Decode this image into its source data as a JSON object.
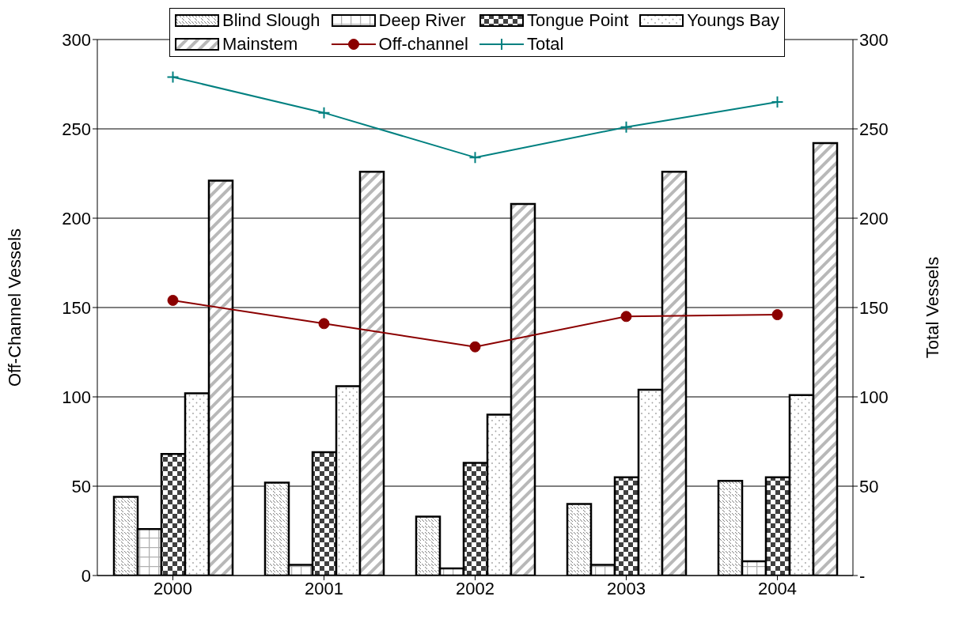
{
  "chart_data": {
    "type": "bar",
    "categories": [
      "2000",
      "2001",
      "2002",
      "2003",
      "2004"
    ],
    "ylabel": "Off-Channel Vessels",
    "y2label": "Total Vessels",
    "ylim": [
      0,
      300
    ],
    "yticks": [
      0,
      50,
      100,
      150,
      200,
      250,
      300
    ],
    "y2lim": [
      0,
      300
    ],
    "y2ticks": [
      {
        "value": 0,
        "label": "-"
      },
      50,
      100,
      150,
      200,
      250,
      300
    ],
    "grid": "y",
    "legend": "top",
    "series": [
      {
        "name": "Blind Slough",
        "color": "#000000",
        "values": [
          44,
          52,
          33,
          40,
          53
        ]
      },
      {
        "name": "Deep River",
        "color": "#000000",
        "values": [
          26,
          6,
          4,
          6,
          8
        ]
      },
      {
        "name": "Tongue Point",
        "color": "#000000",
        "values": [
          68,
          69,
          63,
          55,
          55
        ]
      },
      {
        "name": "Youngs Bay",
        "color": "#000000",
        "values": [
          102,
          106,
          90,
          104,
          101
        ]
      },
      {
        "name": "Mainstem",
        "color": "#000000",
        "values": [
          221,
          226,
          208,
          226,
          242
        ]
      },
      {
        "name": "Off-channel",
        "type": "line",
        "color": "#8b0000",
        "marker": "circle",
        "values": [
          154,
          141,
          128,
          145,
          146
        ]
      },
      {
        "name": "Total",
        "type": "line",
        "axis": "y2",
        "color": "#008080",
        "marker": "cross",
        "values": [
          279,
          259,
          234,
          251,
          265
        ]
      }
    ]
  }
}
